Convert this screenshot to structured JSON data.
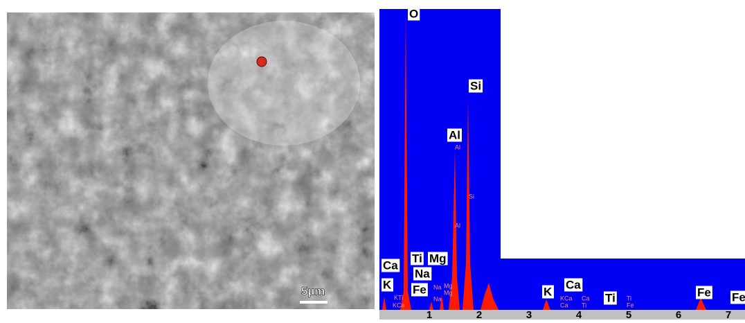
{
  "sem_image": {
    "scale_bar": "5µm"
  },
  "spectrum": {
    "axis_labels": [
      "1",
      "2",
      "3",
      "4",
      "5",
      "6",
      "7"
    ],
    "element_labels": [
      "O",
      "Si",
      "Al",
      "Ca",
      "Ti",
      "Mg",
      "Na",
      "K",
      "Fe",
      "K",
      "Ca",
      "Ti",
      "Fe",
      "Fe"
    ],
    "line_markers": [
      "Al",
      "Si",
      "Al",
      "Na",
      "Mg",
      "Mg",
      "Na",
      "KTi",
      "KCa",
      "KCa",
      "Ca",
      "Ca",
      "Ti",
      "Ti",
      "Fe"
    ]
  }
}
